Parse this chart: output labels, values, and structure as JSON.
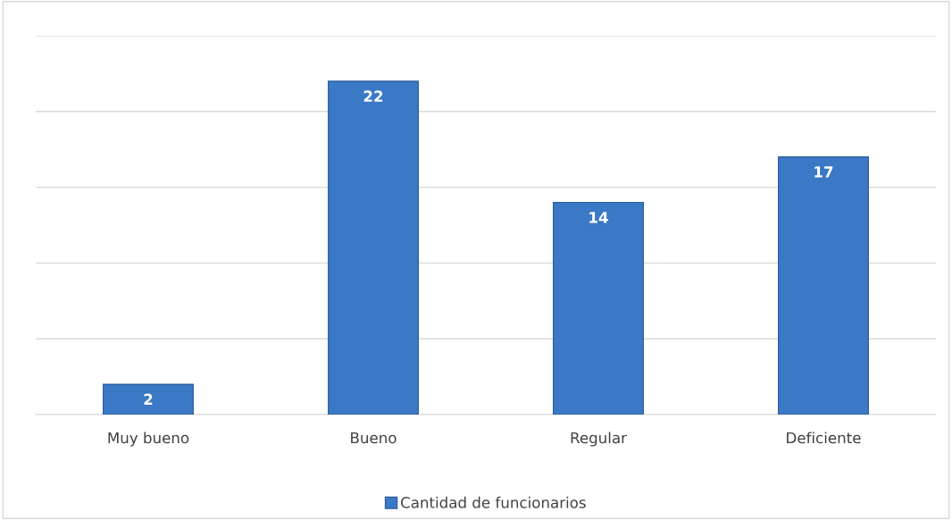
{
  "chart_data": {
    "type": "bar",
    "categories": [
      "Muy bueno",
      "Bueno",
      "Regular",
      "Deficiente"
    ],
    "series": [
      {
        "name": "Cantidad de funcionarios",
        "color": "#3b78c6",
        "values": [
          2,
          22,
          14,
          17
        ]
      }
    ],
    "ylim": [
      0,
      25
    ],
    "yticks": [
      {
        "value": 0,
        "label": null
      },
      {
        "value": 5,
        "label": null
      },
      {
        "value": 10,
        "label": null
      },
      {
        "value": 15,
        "label": null
      },
      {
        "value": 20,
        "label": null
      },
      {
        "value": 25,
        "label": null
      }
    ],
    "tick_labels": "x",
    "grid": "y",
    "legend": "bottom",
    "data_labels": true
  }
}
